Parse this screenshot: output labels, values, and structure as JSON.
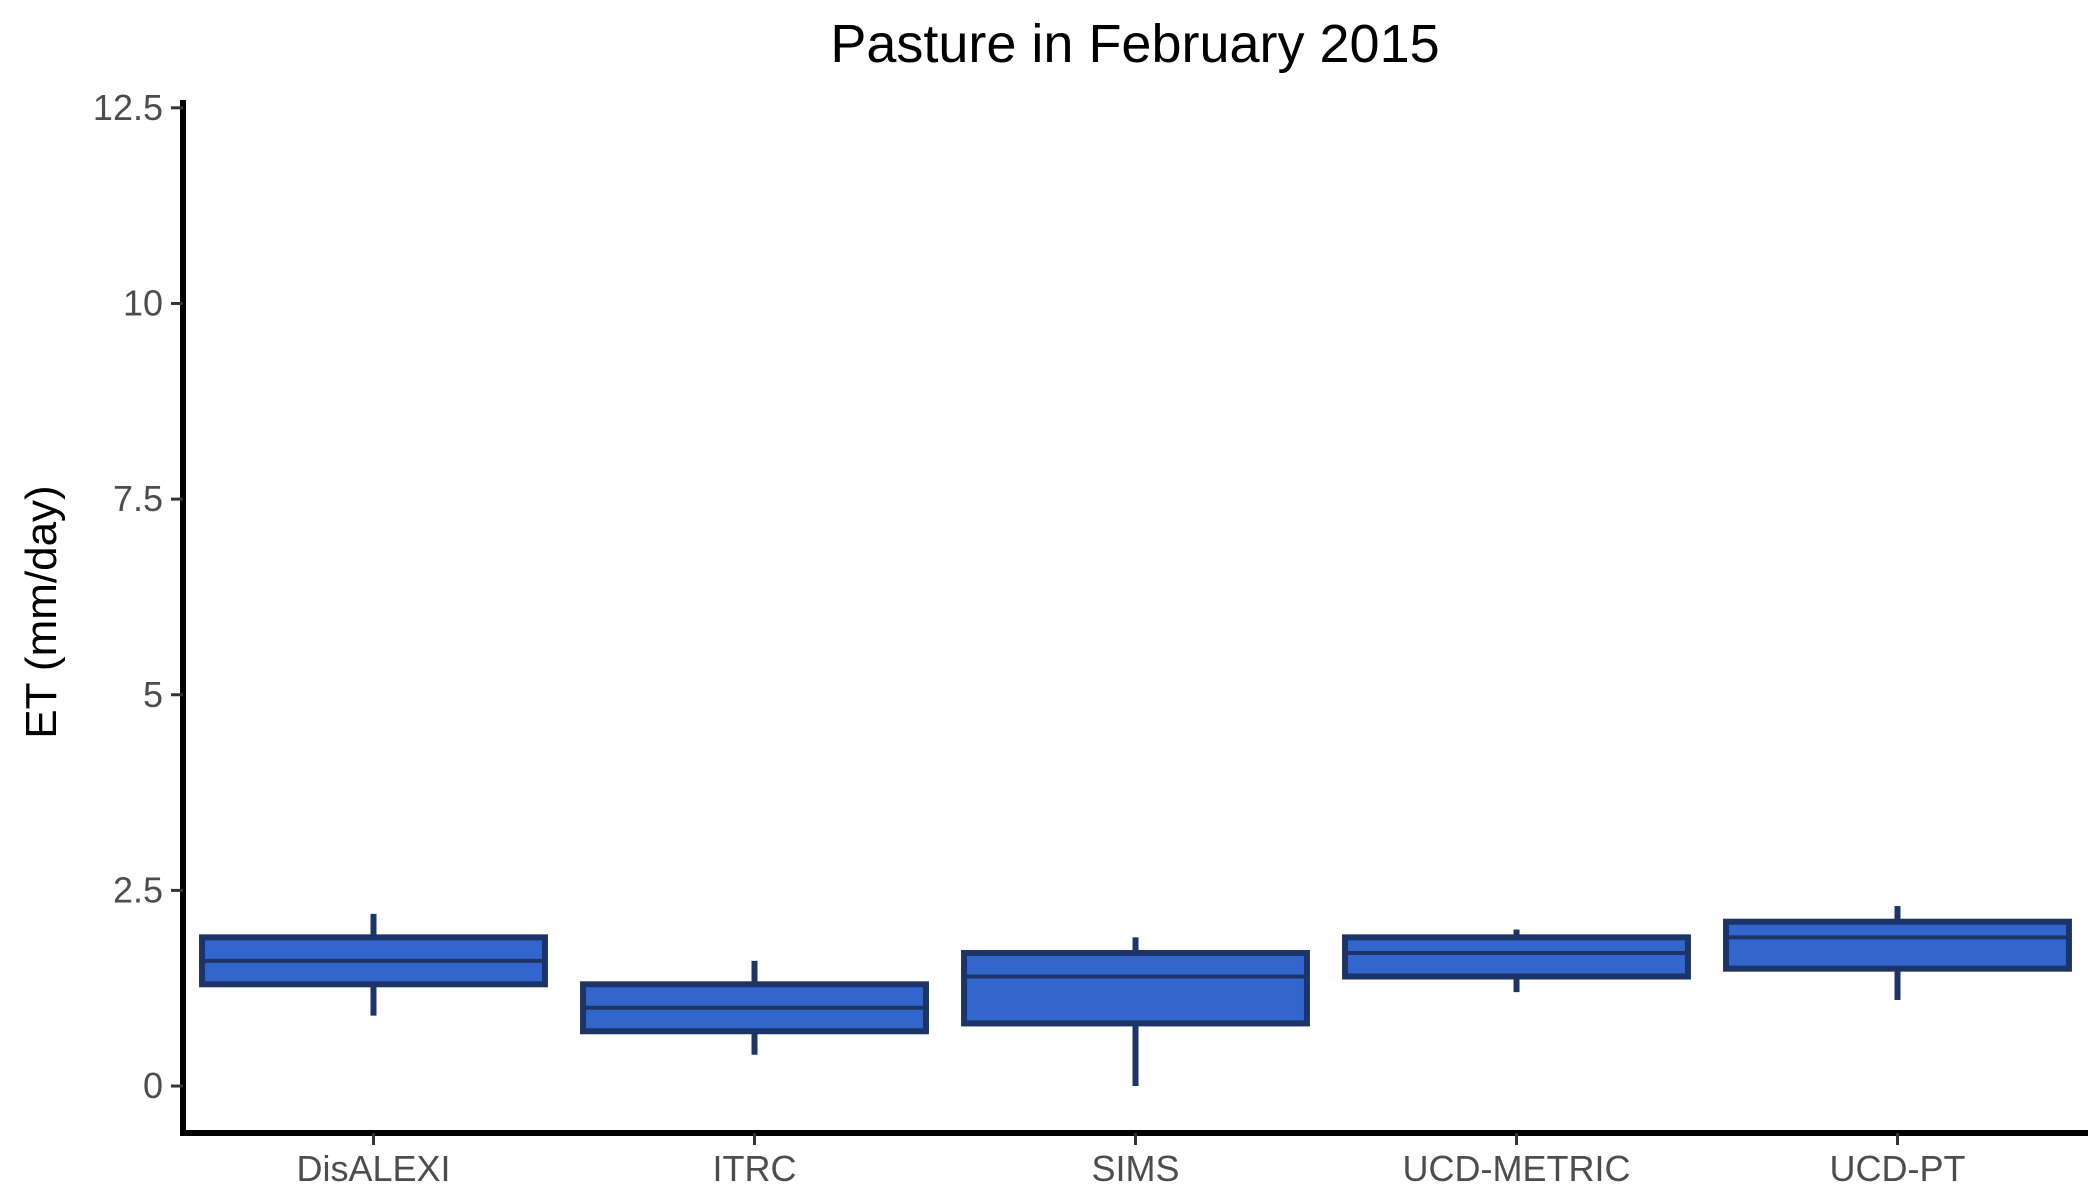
{
  "chart_data": {
    "type": "box",
    "title": "Pasture in February 2015",
    "xlabel": "",
    "ylabel": "ET (mm/day)",
    "ylim": [
      -0.6,
      12.6
    ],
    "yticks": [
      0,
      2.5,
      5,
      7.5,
      10,
      12.5
    ],
    "ytick_labels": [
      "0",
      "2.5",
      "5",
      "7.5",
      "10",
      "12.5"
    ],
    "grid": false,
    "categories": [
      "DisALEXI",
      "ITRC",
      "SIMS",
      "UCD-METRIC",
      "UCD-PT"
    ],
    "boxes": [
      {
        "category": "DisALEXI",
        "min": 0.9,
        "q1": 1.3,
        "median": 1.6,
        "q3": 1.9,
        "max": 2.2
      },
      {
        "category": "ITRC",
        "min": 0.4,
        "q1": 0.7,
        "median": 1.0,
        "q3": 1.3,
        "max": 1.6
      },
      {
        "category": "SIMS",
        "min": 0.0,
        "q1": 0.8,
        "median": 1.4,
        "q3": 1.7,
        "max": 1.9
      },
      {
        "category": "UCD-METRIC",
        "min": 1.2,
        "q1": 1.4,
        "median": 1.7,
        "q3": 1.9,
        "max": 2.0
      },
      {
        "category": "UCD-PT",
        "min": 1.1,
        "q1": 1.5,
        "median": 1.9,
        "q3": 2.1,
        "max": 2.3
      }
    ],
    "colors": {
      "box_fill": "#3366CC",
      "box_stroke": "#1C3466",
      "axis": "#000000"
    }
  }
}
